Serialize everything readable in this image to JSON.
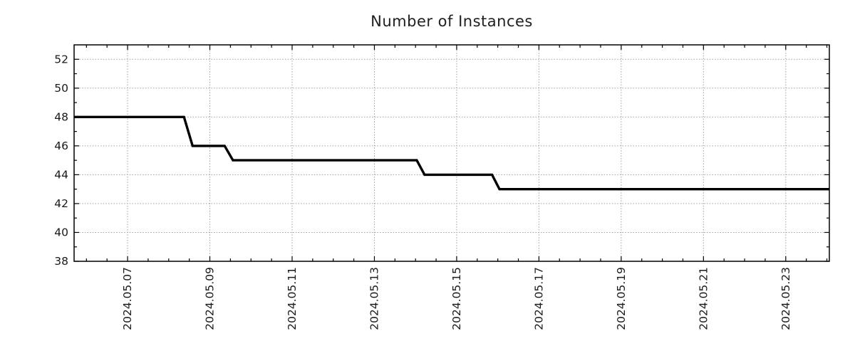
{
  "figure": {
    "background_color": "#ffffff"
  },
  "chart_data": {
    "type": "line",
    "title": "Number of Instances",
    "x_unit": "day of May 2024",
    "series": [
      {
        "name": "Number of Instances",
        "color": "#000000",
        "line_width": 3.4,
        "points": [
          [
            5.7,
            48
          ],
          [
            8.37,
            48
          ],
          [
            8.58,
            46
          ],
          [
            9.36,
            46
          ],
          [
            9.56,
            45
          ],
          [
            14.03,
            45
          ],
          [
            14.22,
            44
          ],
          [
            15.86,
            44
          ],
          [
            16.04,
            43
          ],
          [
            24.06,
            43
          ]
        ]
      }
    ],
    "x_axis": {
      "lim": [
        5.7,
        24.06
      ],
      "major_ticks": [
        {
          "value": 7,
          "label": "2024.05.07"
        },
        {
          "value": 9,
          "label": "2024.05.09"
        },
        {
          "value": 11,
          "label": "2024.05.11"
        },
        {
          "value": 13,
          "label": "2024.05.13"
        },
        {
          "value": 15,
          "label": "2024.05.15"
        },
        {
          "value": 17,
          "label": "2024.05.17"
        },
        {
          "value": 19,
          "label": "2024.05.19"
        },
        {
          "value": 21,
          "label": "2024.05.21"
        },
        {
          "value": 23,
          "label": "2024.05.23"
        }
      ],
      "minor_tick_step": 0.5,
      "label_rotation_deg": -90
    },
    "y_axis": {
      "lim": [
        38,
        53
      ],
      "major_ticks": [
        {
          "value": 38,
          "label": "38"
        },
        {
          "value": 40,
          "label": "40"
        },
        {
          "value": 42,
          "label": "42"
        },
        {
          "value": 44,
          "label": "44"
        },
        {
          "value": 46,
          "label": "46"
        },
        {
          "value": 48,
          "label": "48"
        },
        {
          "value": 50,
          "label": "50"
        },
        {
          "value": 52,
          "label": "52"
        }
      ],
      "minor_tick_step": 1
    },
    "grid": {
      "show": true,
      "style": "dotted",
      "color": "#a0a0a0"
    },
    "legend": {
      "show": false
    },
    "frame_color": "#000000",
    "text_color": "#1a1a1a"
  }
}
